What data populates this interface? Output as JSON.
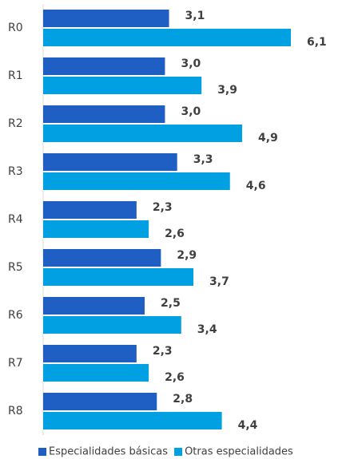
{
  "chart_data": {
    "type": "bar",
    "orientation": "horizontal",
    "categories": [
      "R0",
      "R1",
      "R2",
      "R3",
      "R4",
      "R5",
      "R6",
      "R7",
      "R8"
    ],
    "series": [
      {
        "name": "Especialidades básicas",
        "color": "#1f5fc4",
        "values": [
          3.1,
          3.0,
          3.0,
          3.3,
          2.3,
          2.9,
          2.5,
          2.3,
          2.8
        ],
        "value_labels": [
          "3,1",
          "3,0",
          "3,0",
          "3,3",
          "2,3",
          "2,9",
          "2,5",
          "2,3",
          "2,8"
        ]
      },
      {
        "name": "Otras especialidades",
        "color": "#00a0e3",
        "values": [
          6.1,
          3.9,
          4.9,
          4.6,
          2.6,
          3.7,
          3.4,
          2.6,
          4.4
        ],
        "value_labels": [
          "6,1",
          "3,9",
          "4,9",
          "4,6",
          "2,6",
          "3,7",
          "3,4",
          "2,6",
          "4,4"
        ]
      }
    ],
    "legend": "bottom"
  }
}
